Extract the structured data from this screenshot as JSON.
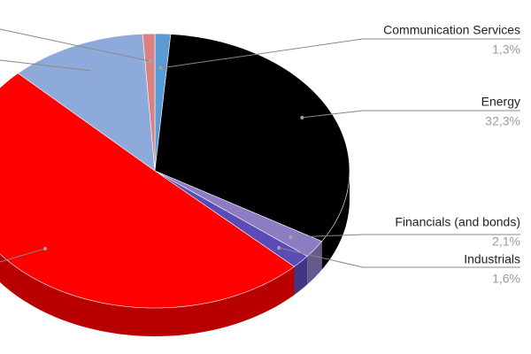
{
  "chart_data": {
    "type": "pie",
    "categories": [
      "Communication Services",
      "Energy",
      "Financials (and bonds)",
      "Industrials",
      null,
      null,
      null
    ],
    "values": [
      1.3,
      32.3,
      2.1,
      1.6,
      50.3,
      11.4,
      1.0
    ],
    "value_labels": [
      "1,3%",
      "32,3%",
      "2,1%",
      "1,6%",
      null,
      null,
      null
    ],
    "colors": [
      "#5b9bd5",
      "#000000",
      "#8e7cc3",
      "#5b4bb5",
      "#ff0000",
      "#8eaadb",
      "#d98080"
    ]
  }
}
